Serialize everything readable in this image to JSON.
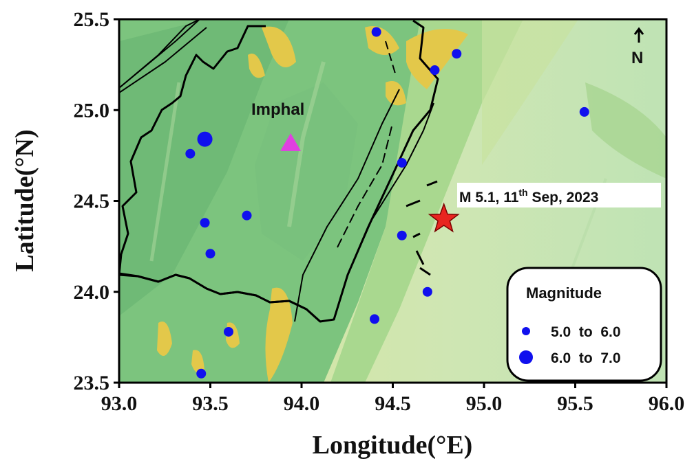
{
  "map": {
    "xaxis": {
      "title": "Longitude(°E)",
      "min": 93.0,
      "max": 96.0,
      "ticks": [
        "93.0",
        "93.5",
        "94.0",
        "94.5",
        "95.0",
        "95.5",
        "96.0"
      ]
    },
    "yaxis": {
      "title": "Latitude(°N)",
      "min": 23.5,
      "max": 25.5,
      "ticks": [
        "23.5",
        "24.0",
        "24.5",
        "25.0",
        "25.5"
      ]
    },
    "north_arrow": "N",
    "north_arrow_icon": "north-arrow-icon",
    "city": {
      "name": "Imphal",
      "lon": 93.94,
      "lat": 24.82,
      "color": "#e040e0"
    },
    "mainshock": {
      "label_main": "M 5.1, 11",
      "label_sup": "th",
      "label_rest": " Sep, 2023",
      "lon": 94.78,
      "lat": 24.4,
      "color": "#e8251f"
    },
    "earthquakes": [
      {
        "lon": 94.41,
        "lat": 25.43,
        "mag_class": "5.0-6.0"
      },
      {
        "lon": 94.85,
        "lat": 25.31,
        "mag_class": "5.0-6.0"
      },
      {
        "lon": 94.73,
        "lat": 25.22,
        "mag_class": "5.0-6.0"
      },
      {
        "lon": 95.55,
        "lat": 24.99,
        "mag_class": "5.0-6.0"
      },
      {
        "lon": 93.47,
        "lat": 24.84,
        "mag_class": "6.0-7.0"
      },
      {
        "lon": 93.39,
        "lat": 24.76,
        "mag_class": "5.0-6.0"
      },
      {
        "lon": 94.55,
        "lat": 24.71,
        "mag_class": "5.0-6.0"
      },
      {
        "lon": 93.7,
        "lat": 24.42,
        "mag_class": "5.0-6.0"
      },
      {
        "lon": 93.47,
        "lat": 24.38,
        "mag_class": "5.0-6.0"
      },
      {
        "lon": 94.55,
        "lat": 24.31,
        "mag_class": "5.0-6.0"
      },
      {
        "lon": 93.5,
        "lat": 24.21,
        "mag_class": "5.0-6.0"
      },
      {
        "lon": 94.69,
        "lat": 24.0,
        "mag_class": "5.0-6.0"
      },
      {
        "lon": 94.4,
        "lat": 23.85,
        "mag_class": "5.0-6.0"
      },
      {
        "lon": 93.6,
        "lat": 23.78,
        "mag_class": "5.0-6.0"
      },
      {
        "lon": 93.45,
        "lat": 23.55,
        "mag_class": "5.0-6.0"
      }
    ],
    "legend": {
      "title": "Magnitude",
      "items": [
        {
          "label": "5.0  to  6.0",
          "mag_class": "5.0-6.0"
        },
        {
          "label": "6.0  to  7.0",
          "mag_class": "6.0-7.0"
        }
      ]
    },
    "colors": {
      "quake": "#1010ee",
      "boundary": "#000000",
      "terrain_low": "#c9e6b0",
      "terrain_mid": "#6dbb78",
      "terrain_high": "#e3c84a"
    }
  }
}
